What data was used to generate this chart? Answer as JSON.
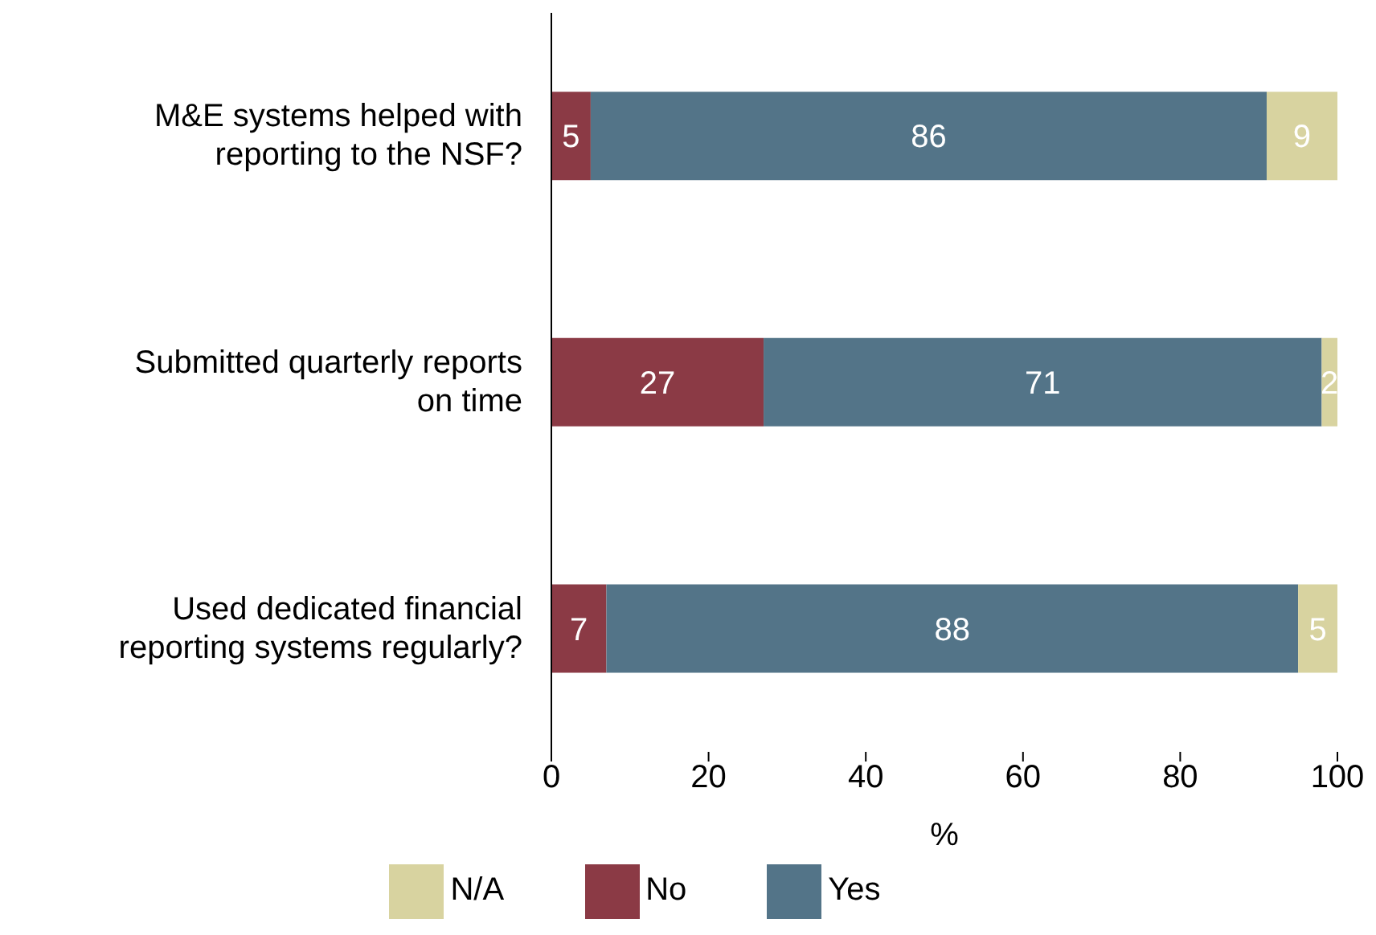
{
  "chart_data": {
    "type": "bar",
    "orientation": "horizontal",
    "stacked": true,
    "categories": [
      "M&E systems helped with reporting to the NSF?",
      "Submitted quarterly reports on time",
      "Used dedicated financial reporting systems regularly?"
    ],
    "series": [
      {
        "name": "No",
        "color": "#8b3a45",
        "values": [
          5,
          27,
          7
        ]
      },
      {
        "name": "Yes",
        "color": "#537488",
        "values": [
          86,
          71,
          88
        ]
      },
      {
        "name": "N/A",
        "color": "#d8d3a0",
        "values": [
          9,
          2,
          5
        ]
      }
    ],
    "xlabel": "%",
    "xlim": [
      0,
      100
    ],
    "xticks": [
      0,
      20,
      40,
      60,
      80,
      100
    ],
    "data_labels": true,
    "legend": "bottom",
    "grid": false
  }
}
